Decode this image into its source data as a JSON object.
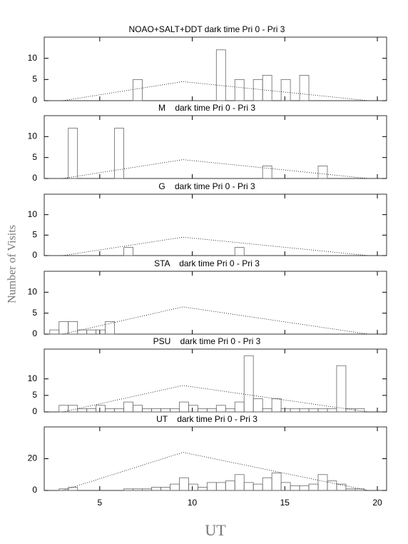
{
  "y_label": "Number of Visits",
  "chart_data": [
    {
      "type": "histogram",
      "title": "NOAO+SALT+DDT dark time Pri 0 - Pri 3",
      "bins": [
        2.3,
        2.8,
        3.3,
        3.8,
        4.3,
        4.8,
        5.3,
        5.8,
        6.3,
        6.8,
        7.3,
        7.8,
        8.3,
        8.8,
        9.3,
        9.8,
        10.3,
        10.8,
        11.3,
        11.8,
        12.3,
        12.8,
        13.3,
        13.8,
        14.3,
        14.8,
        15.3,
        15.8,
        16.3,
        16.8,
        17.3,
        17.8,
        18.3,
        18.8,
        19.3,
        19.8,
        20.3
      ],
      "values": [
        0,
        0,
        0,
        0,
        0,
        0,
        0,
        0,
        0,
        5,
        0,
        0,
        0,
        0,
        0,
        0,
        0,
        0,
        12,
        0,
        5,
        0,
        5,
        6,
        0,
        5,
        0,
        6,
        0,
        0,
        0,
        0,
        0,
        0,
        0,
        0
      ],
      "line": {
        "x": [
          3,
          9.5,
          19.5
        ],
        "values": [
          0,
          4.5,
          0
        ]
      },
      "xlim": [
        2,
        20.5
      ],
      "xticks": [
        5,
        10,
        15,
        20
      ],
      "ylim": [
        0,
        15
      ],
      "yticks": [
        0,
        5,
        10
      ]
    },
    {
      "type": "histogram",
      "title": "M    dark time Pri 0 - Pri 3",
      "bins": [
        2.3,
        2.8,
        3.3,
        3.8,
        4.3,
        4.8,
        5.3,
        5.8,
        6.3,
        6.8,
        7.3,
        7.8,
        8.3,
        8.8,
        9.3,
        9.8,
        10.3,
        10.8,
        11.3,
        11.8,
        12.3,
        12.8,
        13.3,
        13.8,
        14.3,
        14.8,
        15.3,
        15.8,
        16.3,
        16.8,
        17.3,
        17.8,
        18.3,
        18.8,
        19.3,
        19.8,
        20.3
      ],
      "values": [
        0,
        0,
        12,
        0,
        0,
        0,
        0,
        12,
        0,
        0,
        0,
        0,
        0,
        0,
        0,
        0,
        0,
        0,
        0,
        0,
        0,
        0,
        0,
        3,
        0,
        0,
        0,
        0,
        0,
        3,
        0,
        0,
        0,
        0,
        0,
        0
      ],
      "line": {
        "x": [
          3,
          9.5,
          19.5
        ],
        "values": [
          0,
          4.5,
          0
        ]
      },
      "xlim": [
        2,
        20.5
      ],
      "xticks": [
        5,
        10,
        15,
        20
      ],
      "ylim": [
        0,
        15
      ],
      "yticks": [
        0,
        5,
        10
      ]
    },
    {
      "type": "histogram",
      "title": "G    dark time Pri 0 - Pri 3",
      "bins": [
        2.3,
        2.8,
        3.3,
        3.8,
        4.3,
        4.8,
        5.3,
        5.8,
        6.3,
        6.8,
        7.3,
        7.8,
        8.3,
        8.8,
        9.3,
        9.8,
        10.3,
        10.8,
        11.3,
        11.8,
        12.3,
        12.8,
        13.3,
        13.8,
        14.3,
        14.8,
        15.3,
        15.8,
        16.3,
        16.8,
        17.3,
        17.8,
        18.3,
        18.8,
        19.3,
        19.8,
        20.3
      ],
      "values": [
        0,
        0,
        0,
        0,
        0,
        0,
        0,
        0,
        2,
        0,
        0,
        0,
        0,
        0,
        0,
        0,
        0,
        0,
        0,
        0,
        2,
        0,
        0,
        0,
        0,
        0,
        0,
        0,
        0,
        0,
        0,
        0,
        0,
        0,
        0,
        0
      ],
      "line": {
        "x": [
          3,
          9.5,
          19.5
        ],
        "values": [
          0,
          4.5,
          0
        ]
      },
      "xlim": [
        2,
        20.5
      ],
      "xticks": [
        5,
        10,
        15,
        20
      ],
      "ylim": [
        0,
        15
      ],
      "yticks": [
        0,
        5,
        10
      ]
    },
    {
      "type": "histogram",
      "title": "STA    dark time Pri 0 - Pri 3",
      "bins": [
        2.3,
        2.8,
        3.3,
        3.8,
        4.3,
        4.8,
        5.3,
        5.8,
        6.3,
        6.8,
        7.3,
        7.8,
        8.3,
        8.8,
        9.3,
        9.8,
        10.3,
        10.8,
        11.3,
        11.8,
        12.3,
        12.8,
        13.3,
        13.8,
        14.3,
        14.8,
        15.3,
        15.8,
        16.3,
        16.8,
        17.3,
        17.8,
        18.3,
        18.8,
        19.3,
        19.8,
        20.3
      ],
      "values": [
        1,
        3,
        3,
        1,
        1,
        1,
        3,
        0,
        0,
        0,
        0,
        0,
        0,
        0,
        0,
        0,
        0,
        0,
        0,
        0,
        0,
        0,
        0,
        0,
        0,
        0,
        0,
        0,
        0,
        0,
        0,
        0,
        0,
        0,
        0,
        0
      ],
      "line": {
        "x": [
          3,
          9.5,
          19.5
        ],
        "values": [
          0,
          6.5,
          0
        ]
      },
      "xlim": [
        2,
        20.5
      ],
      "xticks": [
        5,
        10,
        15,
        20
      ],
      "ylim": [
        0,
        15
      ],
      "yticks": [
        0,
        5,
        10
      ]
    },
    {
      "type": "histogram",
      "title": "PSU    dark time Pri 0 - Pri 3",
      "bins": [
        2.3,
        2.8,
        3.3,
        3.8,
        4.3,
        4.8,
        5.3,
        5.8,
        6.3,
        6.8,
        7.3,
        7.8,
        8.3,
        8.8,
        9.3,
        9.8,
        10.3,
        10.8,
        11.3,
        11.8,
        12.3,
        12.8,
        13.3,
        13.8,
        14.3,
        14.8,
        15.3,
        15.8,
        16.3,
        16.8,
        17.3,
        17.8,
        18.3,
        18.8,
        19.3,
        19.8,
        20.3
      ],
      "values": [
        0,
        2,
        2,
        1,
        1,
        2,
        1,
        1,
        3,
        2,
        1,
        1,
        1,
        1,
        3,
        2,
        1,
        1,
        2,
        1,
        3,
        17,
        4,
        1,
        4,
        1,
        1,
        1,
        1,
        1,
        1,
        14,
        1,
        1,
        0,
        0
      ],
      "line": {
        "x": [
          3,
          9.5,
          19.5
        ],
        "values": [
          0,
          8,
          0
        ]
      },
      "xlim": [
        2,
        20.5
      ],
      "xticks": [
        5,
        10,
        15,
        20
      ],
      "ylim": [
        0,
        19
      ],
      "yticks": [
        0,
        5,
        10
      ]
    },
    {
      "type": "histogram",
      "title": "UT    dark time Pri 0 - Pri 3",
      "bins": [
        2.3,
        2.8,
        3.3,
        3.8,
        4.3,
        4.8,
        5.3,
        5.8,
        6.3,
        6.8,
        7.3,
        7.8,
        8.3,
        8.8,
        9.3,
        9.8,
        10.3,
        10.8,
        11.3,
        11.8,
        12.3,
        12.8,
        13.3,
        13.8,
        14.3,
        14.8,
        15.3,
        15.8,
        16.3,
        16.8,
        17.3,
        17.8,
        18.3,
        18.8,
        19.3,
        19.8,
        20.3
      ],
      "values": [
        0,
        1,
        2,
        0,
        0,
        0,
        0,
        0,
        1,
        1,
        1,
        2,
        2,
        4,
        8,
        4,
        2,
        5,
        5,
        6,
        10,
        5,
        4,
        8,
        11,
        5,
        3,
        3,
        4,
        10,
        6,
        4,
        1,
        1,
        0,
        0
      ],
      "line": {
        "x": [
          3,
          9.5,
          19.5
        ],
        "values": [
          0,
          24,
          0
        ]
      },
      "xlim": [
        2,
        20.5
      ],
      "xticks": [
        5,
        10,
        15,
        20
      ],
      "ylim": [
        0,
        40
      ],
      "yticks": [
        0,
        20
      ],
      "x_label": "UT"
    }
  ]
}
